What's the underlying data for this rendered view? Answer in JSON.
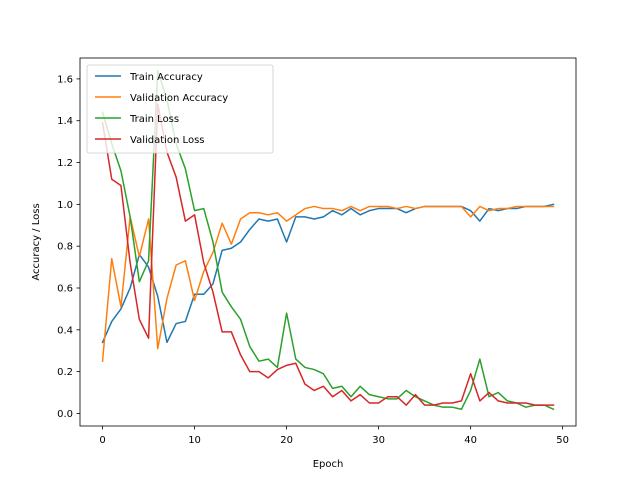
{
  "chart_data": {
    "type": "line",
    "title": "",
    "xlabel": "Epoch",
    "ylabel": "Accuracy / Loss",
    "xlim": [
      -2.45,
      51.45
    ],
    "ylim": [
      -0.06,
      1.7
    ],
    "grid": false,
    "legend_position": "top-left",
    "x_ticks": [
      0,
      10,
      20,
      30,
      40,
      50
    ],
    "x_tick_labels": [
      "0",
      "10",
      "20",
      "30",
      "40",
      "50"
    ],
    "y_ticks": [
      0.0,
      0.2,
      0.4,
      0.6,
      0.8,
      1.0,
      1.2,
      1.4,
      1.6
    ],
    "y_tick_labels": [
      "0.0",
      "0.2",
      "0.4",
      "0.6",
      "0.8",
      "1.0",
      "1.2",
      "1.4",
      "1.6"
    ],
    "x": [
      0,
      1,
      2,
      3,
      4,
      5,
      6,
      7,
      8,
      9,
      10,
      11,
      12,
      13,
      14,
      15,
      16,
      17,
      18,
      19,
      20,
      21,
      22,
      23,
      24,
      25,
      26,
      27,
      28,
      29,
      30,
      31,
      32,
      33,
      34,
      35,
      36,
      37,
      38,
      39,
      40,
      41,
      42,
      43,
      44,
      45,
      46,
      47,
      48,
      49
    ],
    "series": [
      {
        "name": "Train Accuracy",
        "color": "#1f77b4",
        "values": [
          0.34,
          0.44,
          0.5,
          0.6,
          0.76,
          0.7,
          0.56,
          0.34,
          0.43,
          0.44,
          0.57,
          0.57,
          0.62,
          0.78,
          0.79,
          0.82,
          0.88,
          0.93,
          0.92,
          0.93,
          0.82,
          0.94,
          0.94,
          0.93,
          0.94,
          0.97,
          0.95,
          0.98,
          0.95,
          0.97,
          0.98,
          0.98,
          0.98,
          0.96,
          0.98,
          0.99,
          0.99,
          0.99,
          0.99,
          0.99,
          0.97,
          0.92,
          0.98,
          0.97,
          0.98,
          0.98,
          0.99,
          0.99,
          0.99,
          1.0
        ]
      },
      {
        "name": "Validation Accuracy",
        "color": "#ff7f0e",
        "values": [
          0.25,
          0.74,
          0.51,
          0.94,
          0.75,
          0.93,
          0.31,
          0.55,
          0.71,
          0.73,
          0.54,
          0.68,
          0.77,
          0.91,
          0.81,
          0.93,
          0.96,
          0.96,
          0.95,
          0.96,
          0.92,
          0.95,
          0.98,
          0.99,
          0.98,
          0.98,
          0.97,
          0.99,
          0.97,
          0.99,
          0.99,
          0.99,
          0.98,
          0.99,
          0.98,
          0.99,
          0.99,
          0.99,
          0.99,
          0.99,
          0.94,
          0.99,
          0.97,
          0.98,
          0.98,
          0.99,
          0.99,
          0.99,
          0.99,
          0.99
        ]
      },
      {
        "name": "Train Loss",
        "color": "#2ca02c",
        "values": [
          1.44,
          1.29,
          1.16,
          0.94,
          0.63,
          0.73,
          1.64,
          1.5,
          1.29,
          1.17,
          0.97,
          0.98,
          0.82,
          0.58,
          0.51,
          0.45,
          0.32,
          0.25,
          0.26,
          0.22,
          0.48,
          0.26,
          0.22,
          0.21,
          0.19,
          0.12,
          0.13,
          0.08,
          0.13,
          0.09,
          0.08,
          0.07,
          0.07,
          0.11,
          0.08,
          0.06,
          0.04,
          0.03,
          0.03,
          0.02,
          0.11,
          0.26,
          0.08,
          0.1,
          0.06,
          0.05,
          0.03,
          0.04,
          0.04,
          0.02
        ]
      },
      {
        "name": "Validation Loss",
        "color": "#d62728",
        "values": [
          1.39,
          1.12,
          1.09,
          0.72,
          0.45,
          0.36,
          1.48,
          1.25,
          1.13,
          0.92,
          0.95,
          0.72,
          0.58,
          0.39,
          0.39,
          0.28,
          0.2,
          0.2,
          0.17,
          0.21,
          0.23,
          0.24,
          0.14,
          0.11,
          0.13,
          0.08,
          0.11,
          0.06,
          0.09,
          0.05,
          0.05,
          0.08,
          0.08,
          0.04,
          0.09,
          0.04,
          0.04,
          0.05,
          0.05,
          0.06,
          0.19,
          0.06,
          0.1,
          0.06,
          0.05,
          0.05,
          0.05,
          0.04,
          0.04,
          0.04
        ]
      }
    ]
  }
}
